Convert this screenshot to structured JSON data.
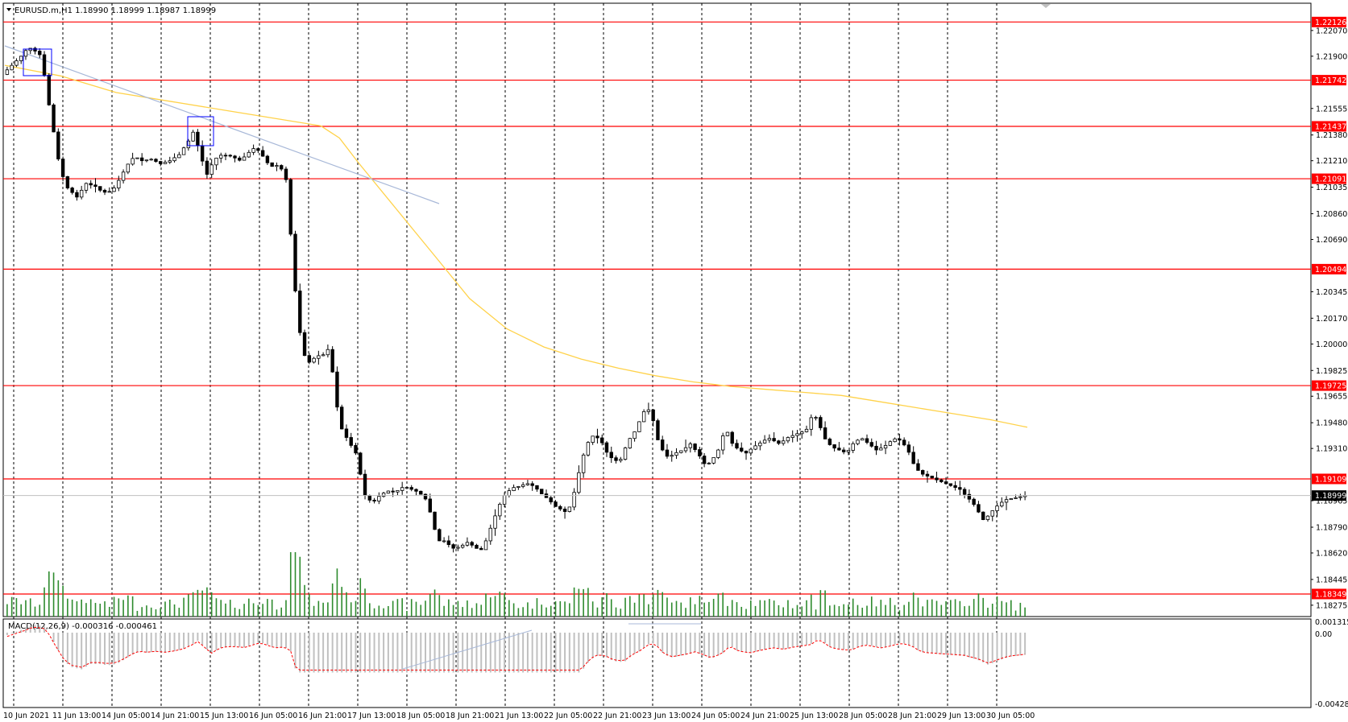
{
  "window": {
    "symbol_info": "EURUSD.m,H1  1.18990 1.18999 1.18987 1.18999",
    "symbol": "EURUSD.m",
    "timeframe": "H1",
    "ohlc": [
      "1.18990",
      "1.18999",
      "1.18987",
      "1.18999"
    ]
  },
  "macd": {
    "label": "MACD(12,26,9) -0.000316 -0.000461",
    "scale_labels": [
      "0.001315",
      "0.00",
      "-0.004281"
    ]
  },
  "price_axis": {
    "labels": [
      "1.22070",
      "1.21900",
      "1.21555",
      "1.21380",
      "1.21210",
      "1.21035",
      "1.20860",
      "1.20690",
      "1.20345",
      "1.20170",
      "1.20000",
      "1.19825",
      "1.19655",
      "1.19480",
      "1.19310",
      "1.18965",
      "1.18790",
      "1.18620",
      "1.18445",
      "1.18275"
    ],
    "range": [
      1.182,
      1.2225
    ]
  },
  "levels": [
    {
      "price": "1.22126",
      "color": "#ff0000"
    },
    {
      "price": "1.21742",
      "color": "#ff0000"
    },
    {
      "price": "1.21437",
      "color": "#ff0000"
    },
    {
      "price": "1.21091",
      "color": "#ff0000"
    },
    {
      "price": "1.20494",
      "color": "#ff0000"
    },
    {
      "price": "1.19725",
      "color": "#ff0000"
    },
    {
      "price": "1.19109",
      "color": "#ff0000"
    },
    {
      "price": "1.18349",
      "color": "#ff0000"
    }
  ],
  "current_price": {
    "price": "1.18999",
    "color": "#000000"
  },
  "time_axis": {
    "labels": [
      "10 Jun 2021",
      "11 Jun 13:00",
      "14 Jun 05:00",
      "14 Jun 21:00",
      "15 Jun 13:00",
      "16 Jun 05:00",
      "16 Jun 21:00",
      "17 Jun 13:00",
      "18 Jun 05:00",
      "18 Jun 21:00",
      "21 Jun 13:00",
      "22 Jun 05:00",
      "22 Jun 21:00",
      "23 Jun 13:00",
      "24 Jun 05:00",
      "24 Jun 21:00",
      "25 Jun 13:00",
      "28 Jun 05:00",
      "28 Jun 21:00",
      "29 Jun 13:00",
      "30 Jun 05:00"
    ]
  },
  "colors": {
    "background": "#ffffff",
    "candle": "#000000",
    "volume": "#2e8b2e",
    "moving_average": "#ffd24a",
    "trendline": "#a8b8d8",
    "macd_histogram": "#c0c0c0",
    "macd_signal": "#ff0000",
    "grid": "#000000",
    "highlight_box": "#0000ff"
  },
  "chart_data": {
    "type": "candlestick",
    "x": [
      "10 Jun 2021",
      "11 Jun 13:00",
      "14 Jun 05:00",
      "14 Jun 21:00",
      "15 Jun 13:00",
      "16 Jun 05:00",
      "16 Jun 21:00",
      "17 Jun 13:00",
      "18 Jun 05:00",
      "18 Jun 21:00",
      "21 Jun 13:00",
      "22 Jun 05:00",
      "22 Jun 21:00",
      "23 Jun 13:00",
      "24 Jun 05:00",
      "24 Jun 21:00",
      "25 Jun 13:00",
      "28 Jun 05:00",
      "28 Jun 21:00",
      "29 Jun 13:00",
      "30 Jun 05:00"
    ],
    "close_path": [
      [
        0,
        1.2178
      ],
      [
        10,
        1.2184
      ],
      [
        20,
        1.219
      ],
      [
        28,
        1.2196
      ],
      [
        36,
        1.2193
      ],
      [
        42,
        1.219
      ],
      [
        48,
        1.2165
      ],
      [
        55,
        1.214
      ],
      [
        62,
        1.2115
      ],
      [
        70,
        1.2103
      ],
      [
        80,
        1.2097
      ],
      [
        90,
        1.2106
      ],
      [
        100,
        1.2104
      ],
      [
        108,
        1.21
      ],
      [
        118,
        1.2101
      ],
      [
        126,
        1.2109
      ],
      [
        134,
        1.2118
      ],
      [
        142,
        1.2124
      ],
      [
        150,
        1.2121
      ],
      [
        160,
        1.2122
      ],
      [
        170,
        1.2119
      ],
      [
        180,
        1.2121
      ],
      [
        190,
        1.2125
      ],
      [
        200,
        1.2134
      ],
      [
        206,
        1.2141
      ],
      [
        212,
        1.2126
      ],
      [
        220,
        1.2112
      ],
      [
        228,
        1.2122
      ],
      [
        236,
        1.2125
      ],
      [
        246,
        1.2124
      ],
      [
        256,
        1.2121
      ],
      [
        264,
        1.2126
      ],
      [
        272,
        1.213
      ],
      [
        280,
        1.2124
      ],
      [
        288,
        1.2117
      ],
      [
        296,
        1.2118
      ],
      [
        304,
        1.2113
      ],
      [
        308,
        1.2095
      ],
      [
        312,
        1.205
      ],
      [
        318,
        1.202
      ],
      [
        322,
        1.1995
      ],
      [
        330,
        1.1988
      ],
      [
        338,
        1.1992
      ],
      [
        346,
        1.1993
      ],
      [
        352,
        1.1998
      ],
      [
        358,
        1.1965
      ],
      [
        364,
        1.1945
      ],
      [
        372,
        1.1936
      ],
      [
        380,
        1.1928
      ],
      [
        390,
        1.19
      ],
      [
        398,
        1.1895
      ],
      [
        406,
        1.19
      ],
      [
        414,
        1.1903
      ],
      [
        422,
        1.1902
      ],
      [
        432,
        1.1906
      ],
      [
        440,
        1.1904
      ],
      [
        448,
        1.1902
      ],
      [
        456,
        1.1897
      ],
      [
        462,
        1.1885
      ],
      [
        468,
        1.187
      ],
      [
        476,
        1.187
      ],
      [
        484,
        1.1865
      ],
      [
        492,
        1.1866
      ],
      [
        500,
        1.1869
      ],
      [
        508,
        1.1866
      ],
      [
        514,
        1.1863
      ],
      [
        520,
        1.187
      ],
      [
        526,
        1.188
      ],
      [
        534,
        1.1893
      ],
      [
        540,
        1.19
      ],
      [
        548,
        1.1905
      ],
      [
        556,
        1.1906
      ],
      [
        564,
        1.1908
      ],
      [
        572,
        1.1906
      ],
      [
        580,
        1.1901
      ],
      [
        588,
        1.1897
      ],
      [
        594,
        1.1893
      ],
      [
        600,
        1.1891
      ],
      [
        606,
        1.1889
      ],
      [
        612,
        1.1894
      ],
      [
        618,
        1.191
      ],
      [
        624,
        1.1925
      ],
      [
        630,
        1.1935
      ],
      [
        636,
        1.194
      ],
      [
        644,
        1.1936
      ],
      [
        652,
        1.1926
      ],
      [
        660,
        1.1923
      ],
      [
        666,
        1.1924
      ],
      [
        672,
        1.1935
      ],
      [
        680,
        1.1942
      ],
      [
        686,
        1.195
      ],
      [
        692,
        1.1958
      ],
      [
        698,
        1.1955
      ],
      [
        704,
        1.1938
      ],
      [
        710,
        1.193
      ],
      [
        716,
        1.1925
      ],
      [
        724,
        1.1928
      ],
      [
        732,
        1.193
      ],
      [
        740,
        1.1934
      ],
      [
        748,
        1.1928
      ],
      [
        756,
        1.192
      ],
      [
        762,
        1.1922
      ],
      [
        770,
        1.193
      ],
      [
        778,
        1.1945
      ],
      [
        784,
        1.1935
      ],
      [
        792,
        1.193
      ],
      [
        800,
        1.1928
      ],
      [
        808,
        1.1932
      ],
      [
        816,
        1.1935
      ],
      [
        824,
        1.1938
      ],
      [
        830,
        1.1936
      ],
      [
        836,
        1.1934
      ],
      [
        844,
        1.1938
      ],
      [
        852,
        1.194
      ],
      [
        860,
        1.1942
      ],
      [
        866,
        1.1944
      ],
      [
        872,
        1.1955
      ],
      [
        878,
        1.1948
      ],
      [
        884,
        1.1938
      ],
      [
        892,
        1.1932
      ],
      [
        900,
        1.193
      ],
      [
        908,
        1.1928
      ],
      [
        916,
        1.1935
      ],
      [
        924,
        1.1938
      ],
      [
        932,
        1.1934
      ],
      [
        940,
        1.193
      ],
      [
        948,
        1.1932
      ],
      [
        956,
        1.1936
      ],
      [
        962,
        1.1938
      ],
      [
        968,
        1.1935
      ],
      [
        974,
        1.193
      ],
      [
        982,
        1.1918
      ],
      [
        990,
        1.1914
      ],
      [
        998,
        1.1912
      ],
      [
        1006,
        1.191
      ],
      [
        1014,
        1.1908
      ],
      [
        1022,
        1.1906
      ],
      [
        1030,
        1.1904
      ],
      [
        1036,
        1.19
      ],
      [
        1044,
        1.1895
      ],
      [
        1050,
        1.1889
      ],
      [
        1056,
        1.1883
      ],
      [
        1062,
        1.1888
      ],
      [
        1070,
        1.1893
      ],
      [
        1078,
        1.1897
      ],
      [
        1086,
        1.1898
      ],
      [
        1094,
        1.1899
      ],
      [
        1100,
        1.19
      ]
    ],
    "moving_average_path": [
      [
        0,
        1.2184
      ],
      [
        60,
        1.2177
      ],
      [
        120,
        1.2166
      ],
      [
        180,
        1.216
      ],
      [
        240,
        1.2154
      ],
      [
        300,
        1.2148
      ],
      [
        340,
        1.2144
      ],
      [
        360,
        1.2136
      ],
      [
        380,
        1.212
      ],
      [
        420,
        1.209
      ],
      [
        460,
        1.206
      ],
      [
        500,
        1.203
      ],
      [
        540,
        1.201
      ],
      [
        580,
        1.1998
      ],
      [
        620,
        1.199
      ],
      [
        660,
        1.1984
      ],
      [
        700,
        1.1979
      ],
      [
        740,
        1.1975
      ],
      [
        780,
        1.1972
      ],
      [
        820,
        1.197
      ],
      [
        860,
        1.1968
      ],
      [
        900,
        1.1966
      ],
      [
        940,
        1.1962
      ],
      [
        980,
        1.1958
      ],
      [
        1020,
        1.1954
      ],
      [
        1060,
        1.195
      ],
      [
        1100,
        1.1945
      ]
    ],
    "ylim": [
      1.182,
      1.2225
    ]
  }
}
